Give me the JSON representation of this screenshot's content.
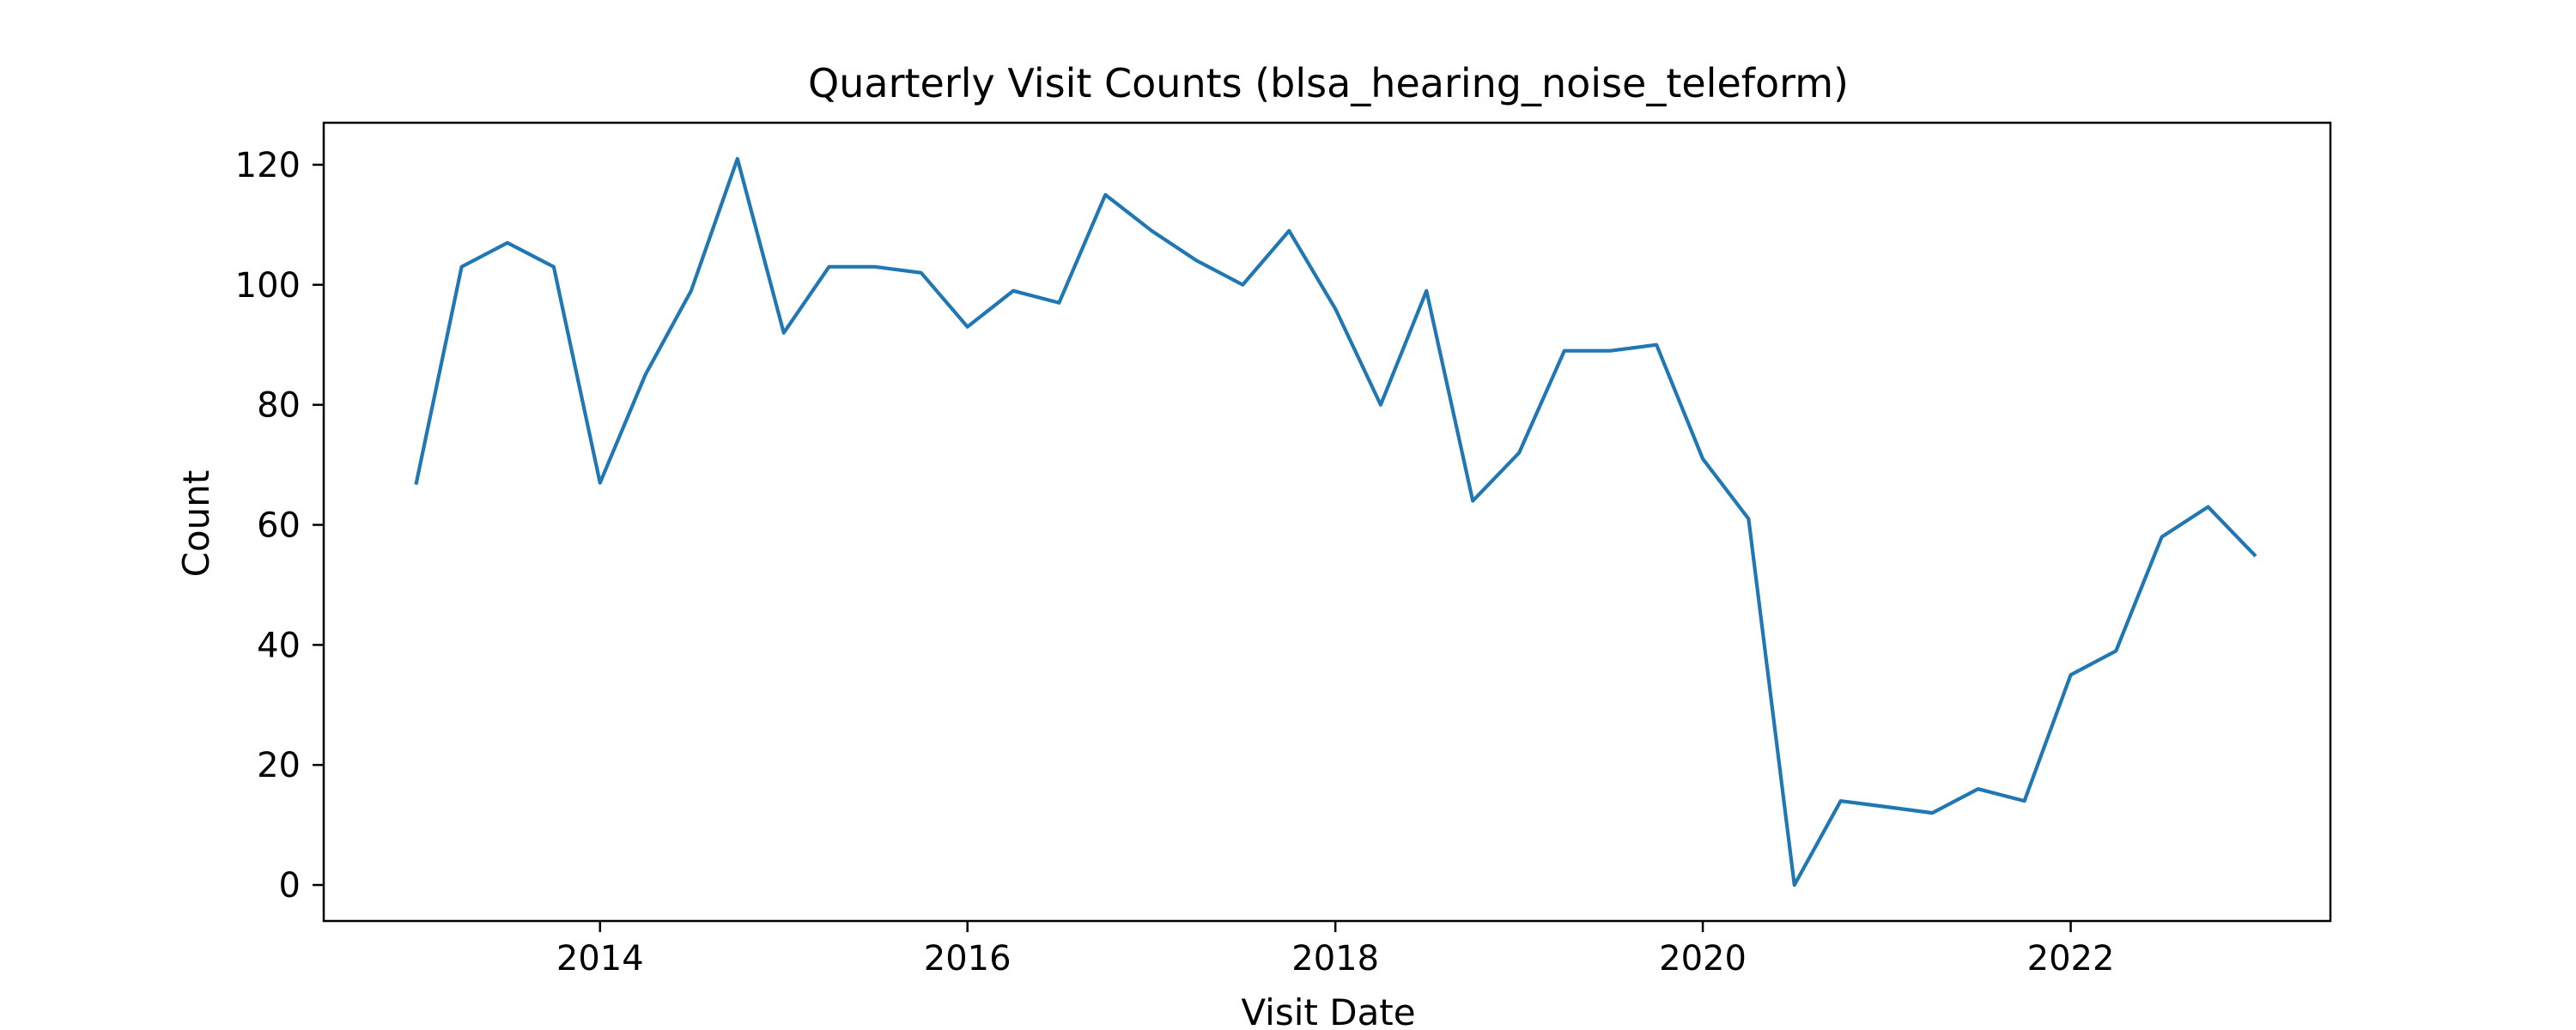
{
  "chart_data": {
    "type": "line",
    "title": "Quarterly Visit Counts (blsa_hearing_noise_teleform)",
    "xlabel": "Visit Date",
    "ylabel": "Count",
    "x_ticks": [
      "2014",
      "2016",
      "2018",
      "2020",
      "2022"
    ],
    "y_ticks": [
      "0",
      "20",
      "40",
      "60",
      "80",
      "100",
      "120"
    ],
    "xlim": [
      "2012-07-01",
      "2023-06-01"
    ],
    "ylim": [
      -6,
      127
    ],
    "grid": false,
    "legend": "none",
    "series": [
      {
        "color": "#1f77b4",
        "x": [
          "2013-01-01",
          "2013-04-01",
          "2013-07-01",
          "2013-10-01",
          "2014-01-01",
          "2014-04-01",
          "2014-07-01",
          "2014-10-01",
          "2015-01-01",
          "2015-04-01",
          "2015-07-01",
          "2015-10-01",
          "2016-01-01",
          "2016-04-01",
          "2016-07-01",
          "2016-10-01",
          "2017-01-01",
          "2017-04-01",
          "2017-07-01",
          "2017-10-01",
          "2018-01-01",
          "2018-04-01",
          "2018-07-01",
          "2018-10-01",
          "2019-01-01",
          "2019-04-01",
          "2019-07-01",
          "2019-10-01",
          "2020-01-01",
          "2020-04-01",
          "2020-07-01",
          "2020-10-01",
          "2021-01-01",
          "2021-04-01",
          "2021-07-01",
          "2021-10-01",
          "2022-01-01",
          "2022-04-01",
          "2022-07-01",
          "2022-10-01",
          "2023-01-01"
        ],
        "y": [
          67,
          103,
          107,
          103,
          67,
          85,
          99,
          121,
          92,
          103,
          103,
          102,
          93,
          99,
          97,
          115,
          109,
          104,
          100,
          109,
          96,
          80,
          99,
          64,
          72,
          89,
          89,
          90,
          71,
          61,
          0,
          14,
          13,
          12,
          16,
          14,
          35,
          39,
          58,
          63,
          55
        ]
      }
    ]
  }
}
